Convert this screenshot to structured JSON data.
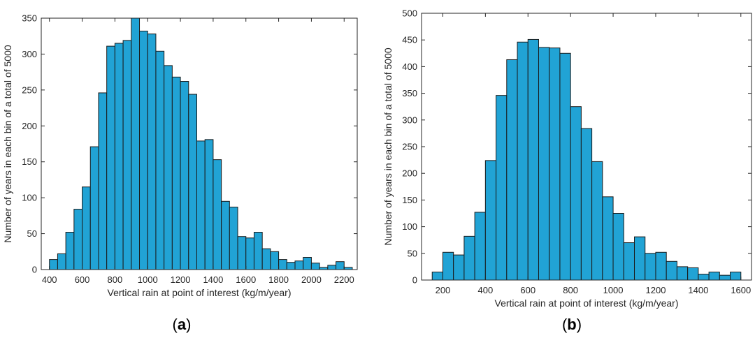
{
  "panels": [
    {
      "label_open": "(",
      "label_letter": "a",
      "label_close": ")"
    },
    {
      "label_open": "(",
      "label_letter": "b",
      "label_close": ")"
    }
  ],
  "chart_data": [
    {
      "type": "bar",
      "panel": "a",
      "xlabel": "Vertical rain at point of interest (kg/m/year)",
      "ylabel": "Number of years in each bin of a total of 5000",
      "xlim": [
        350,
        2280
      ],
      "ylim": [
        0,
        350
      ],
      "xticks": [
        400,
        600,
        800,
        1000,
        1200,
        1400,
        1600,
        1800,
        2000,
        2200
      ],
      "yticks": [
        0,
        50,
        100,
        150,
        200,
        250,
        300,
        350
      ],
      "bin_start": 400,
      "bin_width": 50,
      "values": [
        14,
        22,
        52,
        84,
        115,
        171,
        246,
        311,
        315,
        319,
        350,
        332,
        328,
        304,
        284,
        268,
        262,
        244,
        179,
        181,
        153,
        95,
        87,
        46,
        44,
        52,
        29,
        25,
        14,
        10,
        12,
        17,
        9,
        3,
        6,
        11,
        3
      ],
      "bar_color": "#21A3D5",
      "edge_color": "#1a1a1a",
      "grid": false
    },
    {
      "type": "bar",
      "panel": "b",
      "xlabel": "Vertical rain at point of interest (kg/m/year)",
      "ylabel": "Number of years in each bin of a total of 5000",
      "xlim": [
        100,
        1650
      ],
      "ylim": [
        0,
        500
      ],
      "xticks": [
        200,
        400,
        600,
        800,
        1000,
        1200,
        1400,
        1600
      ],
      "yticks": [
        0,
        50,
        100,
        150,
        200,
        250,
        300,
        350,
        400,
        450,
        500
      ],
      "bin_start": 150,
      "bin_width": 50,
      "values": [
        15,
        52,
        47,
        82,
        127,
        224,
        346,
        413,
        446,
        451,
        436,
        435,
        425,
        325,
        284,
        222,
        156,
        125,
        70,
        81,
        50,
        52,
        35,
        25,
        23,
        11,
        15,
        9,
        15
      ],
      "bar_color": "#21A3D5",
      "edge_color": "#1a1a1a",
      "grid": false
    }
  ]
}
